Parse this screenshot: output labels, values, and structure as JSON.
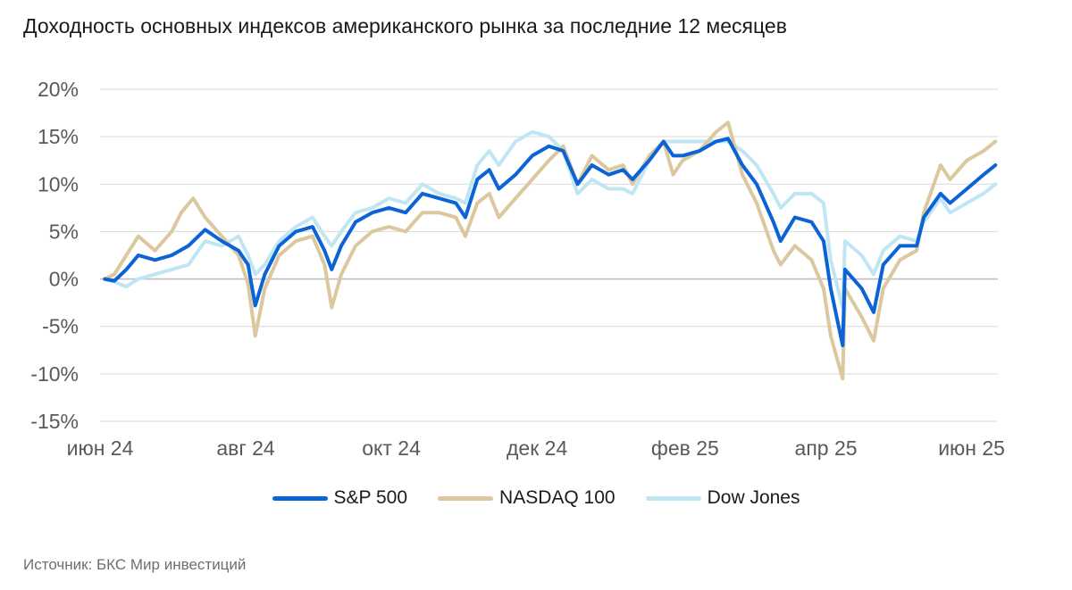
{
  "colors": {
    "sp500": "#0b63d6",
    "nasdaq": "#dcc89f",
    "dow": "#bfe6f2",
    "grid": "#d9d9d9",
    "zero": "#bfbfbf"
  },
  "chart_data": {
    "type": "line",
    "title": "Доходность основных индексов американского рынка за последние 12 месяцев",
    "source": "Источник: БКС Мир инвестиций",
    "y_unit": "%",
    "ylim": [
      -15,
      20
    ],
    "yticks": [
      "20%",
      "15%",
      "10%",
      "5%",
      "0%",
      "-5%",
      "-10%",
      "-15%"
    ],
    "ytick_values": [
      20,
      15,
      10,
      5,
      0,
      -5,
      -10,
      -15
    ],
    "xlim": [
      "2024-06-01",
      "2025-06-12"
    ],
    "xticks": [
      "июн 24",
      "авг 24",
      "окт 24",
      "дек 24",
      "фев 25",
      "апр 25",
      "июн 25"
    ],
    "xtick_dates": [
      "2024-06-01",
      "2024-08-01",
      "2024-10-01",
      "2024-12-01",
      "2025-02-01",
      "2025-04-01",
      "2025-06-01"
    ],
    "grid": true,
    "legend_position": "bottom-center",
    "series": [
      {
        "name": "S&P 500",
        "color_key": "sp500",
        "points": [
          [
            "2024-06-03",
            0
          ],
          [
            "2024-06-07",
            -0.2
          ],
          [
            "2024-06-12",
            1.0
          ],
          [
            "2024-06-17",
            2.5
          ],
          [
            "2024-06-24",
            2.0
          ],
          [
            "2024-07-01",
            2.5
          ],
          [
            "2024-07-08",
            3.5
          ],
          [
            "2024-07-15",
            5.2
          ],
          [
            "2024-07-22",
            4.0
          ],
          [
            "2024-07-29",
            3.0
          ],
          [
            "2024-08-02",
            1.5
          ],
          [
            "2024-08-05",
            -2.8
          ],
          [
            "2024-08-09",
            0.5
          ],
          [
            "2024-08-15",
            3.5
          ],
          [
            "2024-08-22",
            5.0
          ],
          [
            "2024-08-29",
            5.5
          ],
          [
            "2024-09-03",
            3.0
          ],
          [
            "2024-09-06",
            1.0
          ],
          [
            "2024-09-10",
            3.5
          ],
          [
            "2024-09-16",
            6.0
          ],
          [
            "2024-09-23",
            7.0
          ],
          [
            "2024-09-30",
            7.5
          ],
          [
            "2024-10-07",
            7.0
          ],
          [
            "2024-10-14",
            9.0
          ],
          [
            "2024-10-21",
            8.5
          ],
          [
            "2024-10-28",
            8.0
          ],
          [
            "2024-11-01",
            6.5
          ],
          [
            "2024-11-06",
            10.5
          ],
          [
            "2024-11-11",
            11.5
          ],
          [
            "2024-11-15",
            9.5
          ],
          [
            "2024-11-22",
            11.0
          ],
          [
            "2024-11-29",
            13.0
          ],
          [
            "2024-12-06",
            14.0
          ],
          [
            "2024-12-12",
            13.5
          ],
          [
            "2024-12-18",
            10.0
          ],
          [
            "2024-12-24",
            12.0
          ],
          [
            "2024-12-31",
            11.0
          ],
          [
            "2025-01-06",
            11.5
          ],
          [
            "2025-01-10",
            10.5
          ],
          [
            "2025-01-17",
            12.5
          ],
          [
            "2025-01-23",
            14.5
          ],
          [
            "2025-01-27",
            13.0
          ],
          [
            "2025-01-31",
            13.0
          ],
          [
            "2025-02-07",
            13.5
          ],
          [
            "2025-02-14",
            14.5
          ],
          [
            "2025-02-19",
            14.8
          ],
          [
            "2025-02-25",
            12.0
          ],
          [
            "2025-03-03",
            10.0
          ],
          [
            "2025-03-10",
            6.0
          ],
          [
            "2025-03-13",
            4.0
          ],
          [
            "2025-03-19",
            6.5
          ],
          [
            "2025-03-26",
            6.0
          ],
          [
            "2025-03-31",
            4.0
          ],
          [
            "2025-04-03",
            -1.0
          ],
          [
            "2025-04-08",
            -7.0
          ],
          [
            "2025-04-09",
            1.0
          ],
          [
            "2025-04-16",
            -1.0
          ],
          [
            "2025-04-21",
            -3.5
          ],
          [
            "2025-04-25",
            1.5
          ],
          [
            "2025-05-02",
            3.5
          ],
          [
            "2025-05-09",
            3.5
          ],
          [
            "2025-05-12",
            6.5
          ],
          [
            "2025-05-19",
            9.0
          ],
          [
            "2025-05-23",
            8.0
          ],
          [
            "2025-05-30",
            9.5
          ],
          [
            "2025-06-06",
            11.0
          ],
          [
            "2025-06-11",
            12.0
          ]
        ]
      },
      {
        "name": "NASDAQ 100",
        "color_key": "nasdaq",
        "points": [
          [
            "2024-06-03",
            0
          ],
          [
            "2024-06-07",
            0.5
          ],
          [
            "2024-06-12",
            2.5
          ],
          [
            "2024-06-17",
            4.5
          ],
          [
            "2024-06-24",
            3.0
          ],
          [
            "2024-07-01",
            5.0
          ],
          [
            "2024-07-05",
            7.0
          ],
          [
            "2024-07-10",
            8.5
          ],
          [
            "2024-07-15",
            6.5
          ],
          [
            "2024-07-22",
            4.5
          ],
          [
            "2024-07-29",
            2.5
          ],
          [
            "2024-08-02",
            -0.5
          ],
          [
            "2024-08-05",
            -6.0
          ],
          [
            "2024-08-09",
            -1.0
          ],
          [
            "2024-08-15",
            2.5
          ],
          [
            "2024-08-22",
            4.0
          ],
          [
            "2024-08-29",
            4.5
          ],
          [
            "2024-09-03",
            1.5
          ],
          [
            "2024-09-06",
            -3.0
          ],
          [
            "2024-09-10",
            0.5
          ],
          [
            "2024-09-16",
            3.5
          ],
          [
            "2024-09-23",
            5.0
          ],
          [
            "2024-09-30",
            5.5
          ],
          [
            "2024-10-07",
            5.0
          ],
          [
            "2024-10-14",
            7.0
          ],
          [
            "2024-10-21",
            7.0
          ],
          [
            "2024-10-28",
            6.5
          ],
          [
            "2024-11-01",
            4.5
          ],
          [
            "2024-11-06",
            8.0
          ],
          [
            "2024-11-11",
            9.0
          ],
          [
            "2024-11-15",
            6.5
          ],
          [
            "2024-11-22",
            8.5
          ],
          [
            "2024-11-29",
            10.5
          ],
          [
            "2024-12-06",
            12.5
          ],
          [
            "2024-12-12",
            14.0
          ],
          [
            "2024-12-18",
            10.0
          ],
          [
            "2024-12-24",
            13.0
          ],
          [
            "2024-12-31",
            11.5
          ],
          [
            "2025-01-06",
            12.0
          ],
          [
            "2025-01-10",
            10.0
          ],
          [
            "2025-01-17",
            13.0
          ],
          [
            "2025-01-23",
            14.5
          ],
          [
            "2025-01-27",
            11.0
          ],
          [
            "2025-01-31",
            12.5
          ],
          [
            "2025-02-07",
            13.5
          ],
          [
            "2025-02-14",
            15.5
          ],
          [
            "2025-02-19",
            16.5
          ],
          [
            "2025-02-25",
            11.0
          ],
          [
            "2025-03-03",
            8.0
          ],
          [
            "2025-03-10",
            3.0
          ],
          [
            "2025-03-13",
            1.5
          ],
          [
            "2025-03-19",
            3.5
          ],
          [
            "2025-03-26",
            2.0
          ],
          [
            "2025-03-31",
            -1.0
          ],
          [
            "2025-04-03",
            -6.0
          ],
          [
            "2025-04-08",
            -10.5
          ],
          [
            "2025-04-09",
            -1.0
          ],
          [
            "2025-04-16",
            -4.0
          ],
          [
            "2025-04-21",
            -6.5
          ],
          [
            "2025-04-25",
            -1.0
          ],
          [
            "2025-05-02",
            2.0
          ],
          [
            "2025-05-09",
            3.0
          ],
          [
            "2025-05-12",
            7.0
          ],
          [
            "2025-05-19",
            12.0
          ],
          [
            "2025-05-23",
            10.5
          ],
          [
            "2025-05-30",
            12.5
          ],
          [
            "2025-06-06",
            13.5
          ],
          [
            "2025-06-11",
            14.5
          ]
        ]
      },
      {
        "name": "Dow Jones",
        "color_key": "dow",
        "points": [
          [
            "2024-06-03",
            0
          ],
          [
            "2024-06-07",
            -0.3
          ],
          [
            "2024-06-12",
            -0.8
          ],
          [
            "2024-06-17",
            0.0
          ],
          [
            "2024-06-24",
            0.5
          ],
          [
            "2024-07-01",
            1.0
          ],
          [
            "2024-07-08",
            1.5
          ],
          [
            "2024-07-15",
            4.0
          ],
          [
            "2024-07-22",
            3.5
          ],
          [
            "2024-07-29",
            4.5
          ],
          [
            "2024-08-02",
            2.5
          ],
          [
            "2024-08-05",
            0.5
          ],
          [
            "2024-08-09",
            1.5
          ],
          [
            "2024-08-15",
            4.0
          ],
          [
            "2024-08-22",
            5.5
          ],
          [
            "2024-08-29",
            6.5
          ],
          [
            "2024-09-03",
            4.5
          ],
          [
            "2024-09-06",
            3.5
          ],
          [
            "2024-09-10",
            5.0
          ],
          [
            "2024-09-16",
            7.0
          ],
          [
            "2024-09-23",
            7.5
          ],
          [
            "2024-09-30",
            8.5
          ],
          [
            "2024-10-07",
            8.0
          ],
          [
            "2024-10-14",
            10.0
          ],
          [
            "2024-10-21",
            9.0
          ],
          [
            "2024-10-28",
            8.5
          ],
          [
            "2024-11-01",
            8.0
          ],
          [
            "2024-11-06",
            12.0
          ],
          [
            "2024-11-11",
            13.5
          ],
          [
            "2024-11-15",
            12.0
          ],
          [
            "2024-11-22",
            14.5
          ],
          [
            "2024-11-29",
            15.5
          ],
          [
            "2024-12-06",
            15.0
          ],
          [
            "2024-12-12",
            13.5
          ],
          [
            "2024-12-18",
            9.0
          ],
          [
            "2024-12-24",
            10.5
          ],
          [
            "2024-12-31",
            9.5
          ],
          [
            "2025-01-06",
            9.5
          ],
          [
            "2025-01-10",
            9.0
          ],
          [
            "2025-01-17",
            12.5
          ],
          [
            "2025-01-23",
            14.5
          ],
          [
            "2025-01-27",
            14.5
          ],
          [
            "2025-01-31",
            14.5
          ],
          [
            "2025-02-07",
            14.5
          ],
          [
            "2025-02-14",
            14.5
          ],
          [
            "2025-02-19",
            14.5
          ],
          [
            "2025-02-25",
            13.5
          ],
          [
            "2025-03-03",
            12.0
          ],
          [
            "2025-03-10",
            9.0
          ],
          [
            "2025-03-13",
            7.5
          ],
          [
            "2025-03-19",
            9.0
          ],
          [
            "2025-03-26",
            9.0
          ],
          [
            "2025-03-31",
            8.0
          ],
          [
            "2025-04-03",
            2.0
          ],
          [
            "2025-04-08",
            -3.0
          ],
          [
            "2025-04-09",
            4.0
          ],
          [
            "2025-04-16",
            2.5
          ],
          [
            "2025-04-21",
            0.5
          ],
          [
            "2025-04-25",
            3.0
          ],
          [
            "2025-05-02",
            4.5
          ],
          [
            "2025-05-09",
            4.0
          ],
          [
            "2025-05-12",
            6.0
          ],
          [
            "2025-05-19",
            8.5
          ],
          [
            "2025-05-23",
            7.0
          ],
          [
            "2025-05-30",
            8.0
          ],
          [
            "2025-06-06",
            9.0
          ],
          [
            "2025-06-11",
            10.0
          ]
        ]
      }
    ]
  }
}
